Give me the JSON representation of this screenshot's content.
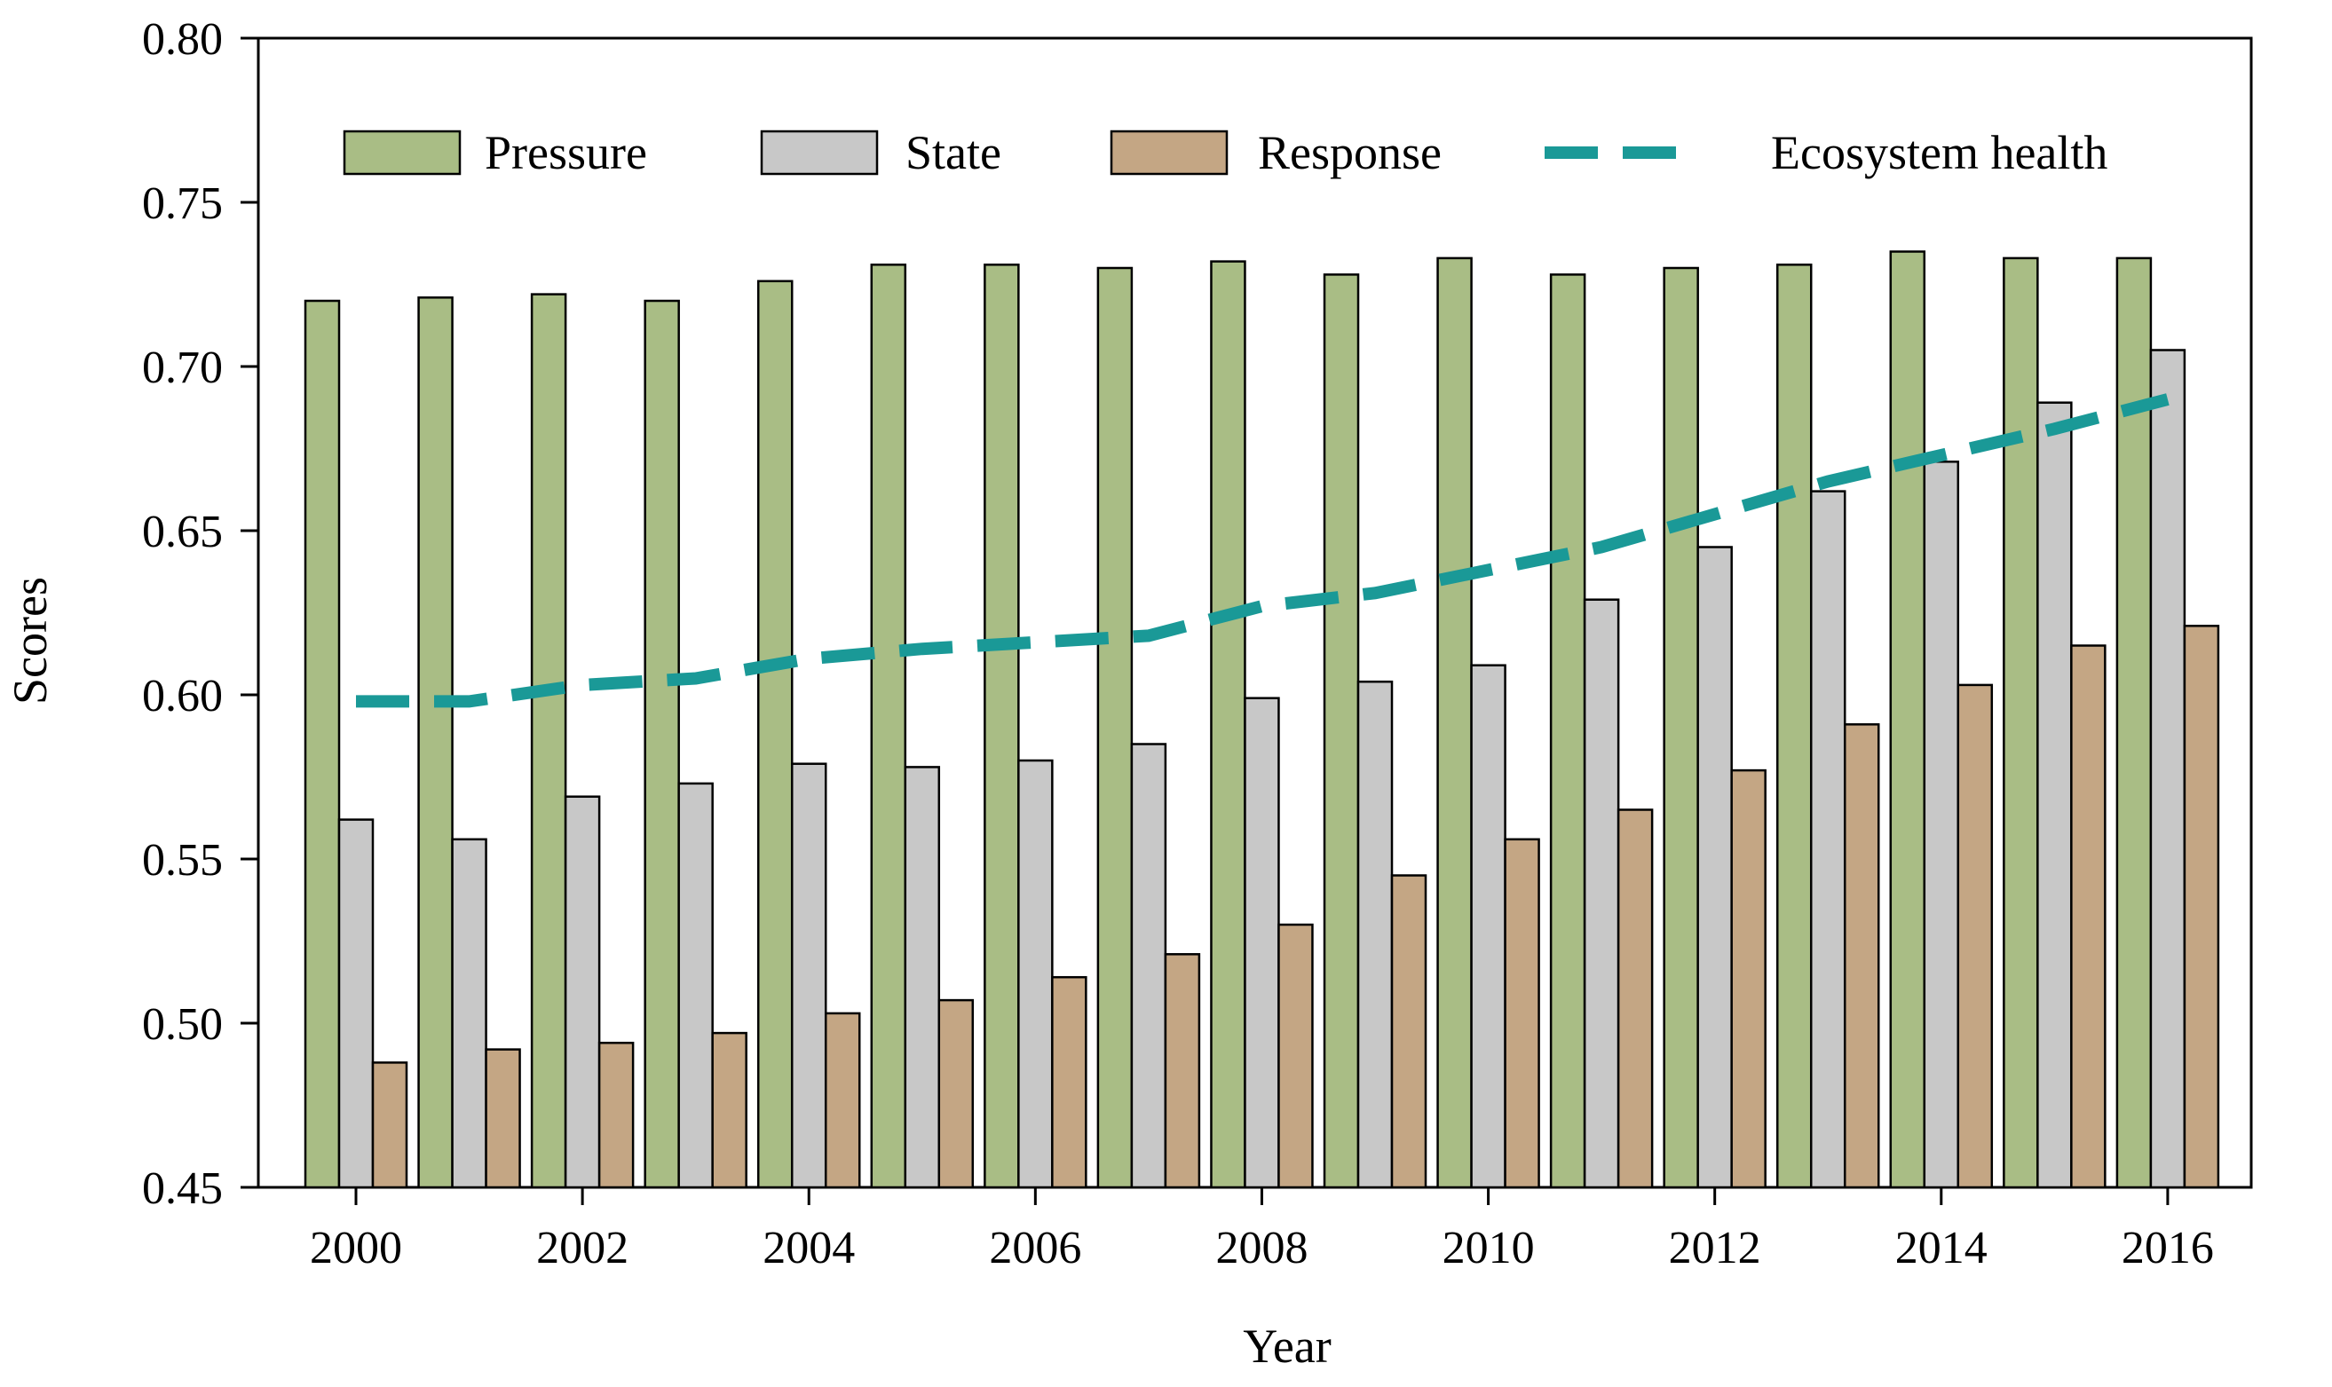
{
  "chart_data": {
    "type": "bar",
    "title": "",
    "xlabel": "Year",
    "ylabel": "Scores",
    "ylim": [
      0.45,
      0.8
    ],
    "yticks": [
      "0.45",
      "0.50",
      "0.55",
      "0.60",
      "0.65",
      "0.70",
      "0.75",
      "0.80"
    ],
    "ytick_values": [
      0.45,
      0.5,
      0.55,
      0.6,
      0.65,
      0.7,
      0.75,
      0.8
    ],
    "categories": [
      "2000",
      "2001",
      "2002",
      "2003",
      "2004",
      "2005",
      "2006",
      "2007",
      "2008",
      "2009",
      "2010",
      "2011",
      "2012",
      "2013",
      "2014",
      "2015",
      "2016"
    ],
    "xtick_labels": [
      "2000",
      "2002",
      "2004",
      "2006",
      "2008",
      "2010",
      "2012",
      "2014",
      "2016"
    ],
    "grid": false,
    "legend_position": "top",
    "series": [
      {
        "name": "Pressure",
        "type": "bar",
        "color": "#a9bd85",
        "values": [
          0.72,
          0.721,
          0.722,
          0.72,
          0.726,
          0.731,
          0.731,
          0.73,
          0.732,
          0.728,
          0.733,
          0.728,
          0.73,
          0.731,
          0.735,
          0.733,
          0.733
        ]
      },
      {
        "name": "State",
        "type": "bar",
        "color": "#c8c8c8",
        "values": [
          0.562,
          0.556,
          0.569,
          0.573,
          0.579,
          0.578,
          0.58,
          0.585,
          0.599,
          0.604,
          0.609,
          0.629,
          0.645,
          0.662,
          0.671,
          0.689,
          0.705
        ]
      },
      {
        "name": "Response",
        "type": "bar",
        "color": "#c4a684",
        "values": [
          0.488,
          0.492,
          0.494,
          0.497,
          0.503,
          0.507,
          0.514,
          0.521,
          0.53,
          0.545,
          0.556,
          0.565,
          0.577,
          0.591,
          0.603,
          0.615,
          0.621
        ]
      },
      {
        "name": "Ecosystem health",
        "type": "line",
        "style": "dashed",
        "color": "#1a9997",
        "values": [
          0.598,
          0.598,
          0.603,
          0.605,
          0.611,
          0.614,
          0.616,
          0.618,
          0.627,
          0.631,
          0.638,
          0.645,
          0.655,
          0.665,
          0.673,
          0.681,
          0.69
        ]
      }
    ]
  }
}
